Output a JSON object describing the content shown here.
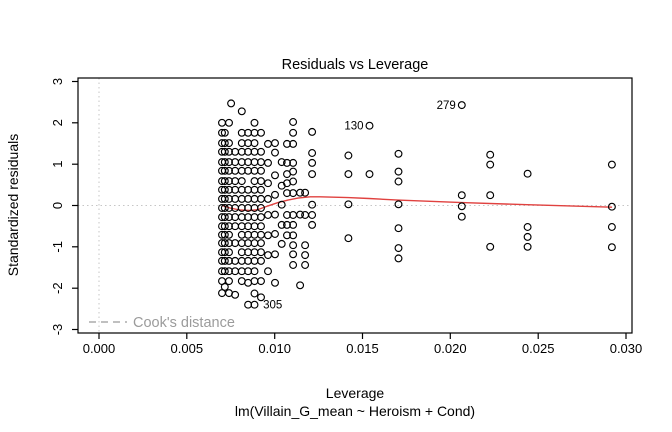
{
  "chart_data": {
    "type": "scatter",
    "title": "Residuals vs Leverage",
    "xlabel": "Leverage",
    "ylabel": "Standardized residuals",
    "model_label": "lm(Villain_G_mean ~ Heroism + Cond)",
    "xlim": [
      -0.0012,
      0.03036
    ],
    "ylim": [
      -3.09,
      3.09
    ],
    "grid": false,
    "x_ticks": {
      "values": [
        0.0,
        0.005,
        0.01,
        0.015,
        0.02,
        0.025,
        0.03
      ],
      "labels": [
        "0.000",
        "0.005",
        "0.010",
        "0.015",
        "0.020",
        "0.025",
        "0.030"
      ]
    },
    "y_ticks": {
      "values": [
        -3,
        -2,
        -1,
        0,
        1,
        2,
        3
      ],
      "labels": [
        "-3",
        "-2",
        "-1",
        "0",
        "1",
        "2",
        "3"
      ]
    },
    "reference_lines": {
      "horizontal_y": 0,
      "vertical_x": 0,
      "color": "#c6c6c6",
      "style": "dotted"
    },
    "legend": {
      "label": "Cook's distance",
      "color": "#9b9b9b",
      "line_style": "dashed",
      "position": "bottom-left"
    },
    "point_style": {
      "stroke": "#000000",
      "fill": "none",
      "radius": 3.4,
      "stroke_width": 1.15
    },
    "smoother": {
      "name": "red smoothing line",
      "color": "#e0413f",
      "points": [
        [
          0.007,
          0.0
        ],
        [
          0.00746,
          -0.06
        ],
        [
          0.00803,
          -0.11
        ],
        [
          0.0086,
          -0.12
        ],
        [
          0.00905,
          -0.1
        ],
        [
          0.00962,
          -0.01
        ],
        [
          0.01019,
          0.07
        ],
        [
          0.01076,
          0.13
        ],
        [
          0.01133,
          0.18
        ],
        [
          0.01201,
          0.21
        ],
        [
          0.01258,
          0.21
        ],
        [
          0.01418,
          0.19
        ],
        [
          0.01537,
          0.17
        ],
        [
          0.01702,
          0.13
        ],
        [
          0.02067,
          0.07
        ],
        [
          0.02437,
          0.02
        ],
        [
          0.02921,
          -0.04
        ]
      ]
    },
    "labeled_points": [
      {
        "label": "130",
        "x": 0.0154,
        "y": 1.93,
        "side": "left"
      },
      {
        "label": "279",
        "x": 0.02065,
        "y": 2.43,
        "side": "left"
      },
      {
        "label": "305",
        "x": 0.009,
        "y": -2.4,
        "side": "right"
      }
    ],
    "columns": [
      {
        "leverage": 0.007,
        "residuals": [
          2.0,
          1.76,
          1.51,
          1.3,
          1.05,
          0.84,
          0.59,
          0.38,
          0.16,
          -0.06,
          -0.28,
          -0.5,
          -0.71,
          -0.91,
          -1.13,
          -1.34,
          -1.59,
          -1.83,
          -2.12
        ]
      },
      {
        "leverage": 0.00716,
        "residuals": [
          1.76,
          1.51,
          1.3,
          1.05,
          0.84,
          0.59,
          0.38,
          0.16,
          -0.06,
          -0.28,
          -0.5,
          -0.71,
          -0.91,
          -1.13,
          -1.34,
          -1.59,
          -1.97
        ]
      },
      {
        "leverage": 0.0074,
        "residuals": [
          2.0,
          1.51,
          1.3,
          1.05,
          0.84,
          0.59,
          0.38,
          0.16,
          -0.06,
          -0.28,
          -0.5,
          -0.71,
          -0.91,
          -1.13,
          -1.34,
          -1.59,
          -1.83,
          -2.12
        ]
      },
      {
        "leverage": 0.00752,
        "residuals": [
          2.47
        ]
      },
      {
        "leverage": 0.00775,
        "residuals": [
          1.3,
          1.05,
          0.84,
          0.59,
          0.38,
          0.16,
          -0.06,
          -0.28,
          -0.5,
          -0.91,
          -1.34,
          -1.59,
          -2.16
        ]
      },
      {
        "leverage": 0.00813,
        "residuals": [
          2.28,
          1.76,
          1.51,
          1.3,
          1.05,
          0.84,
          0.59,
          0.38,
          0.16,
          -0.06,
          -0.28,
          -0.5,
          -0.71,
          -0.91,
          -1.13,
          -1.34,
          -1.59,
          -1.83
        ]
      },
      {
        "leverage": 0.00849,
        "residuals": [
          1.76,
          1.51,
          1.3,
          1.05,
          0.84,
          0.38,
          0.16,
          -0.06,
          -0.28,
          -0.5,
          -0.71,
          -0.91,
          -1.13,
          -1.34,
          -1.59,
          -1.87,
          -2.4
        ]
      },
      {
        "leverage": 0.00885,
        "residuals": [
          2.0,
          1.76,
          1.51,
          1.3,
          1.05,
          0.84,
          0.59,
          0.38,
          0.16,
          -0.06,
          -0.28,
          -0.5,
          -0.71,
          -0.91,
          -1.13,
          -1.34,
          -1.59,
          -1.83,
          -2.13,
          -2.4
        ]
      },
      {
        "leverage": 0.00922,
        "residuals": [
          1.76,
          1.3,
          1.05,
          0.84,
          0.59,
          0.38,
          0.16,
          -0.06,
          -0.28,
          -0.5,
          -0.71,
          -0.91,
          -1.13,
          -1.34,
          -1.83,
          -2.22
        ]
      },
      {
        "leverage": 0.00962,
        "residuals": [
          1.49,
          1.03,
          0.54,
          0.16,
          -0.23,
          -0.72,
          -1.2,
          -1.59
        ]
      },
      {
        "leverage": 0.01002,
        "residuals": [
          1.51,
          1.28,
          0.73,
          0.26,
          -0.22,
          -0.69,
          -1.18,
          -1.87
        ]
      },
      {
        "leverage": 0.0104,
        "residuals": [
          1.05,
          0.48,
          0.02,
          -0.47,
          -0.93
        ]
      },
      {
        "leverage": 0.0107,
        "residuals": [
          1.49,
          1.03,
          0.76,
          0.54,
          0.3,
          -0.23,
          -0.47,
          -0.72
        ]
      },
      {
        "leverage": 0.01105,
        "residuals": [
          2.02,
          1.76,
          1.49,
          1.03,
          0.82,
          0.58,
          0.3,
          -0.23,
          -0.47,
          -0.72,
          -0.96,
          -1.18,
          -1.44
        ]
      },
      {
        "leverage": 0.01145,
        "residuals": [
          0.31,
          -0.22,
          -1.93
        ]
      },
      {
        "leverage": 0.01173,
        "residuals": [
          0.31,
          -0.23,
          -0.96,
          -1.2,
          -1.44
        ]
      },
      {
        "leverage": 0.01213,
        "residuals": [
          1.78,
          1.27,
          1.03,
          0.76,
          0.02,
          -0.23,
          -0.47
        ]
      },
      {
        "leverage": 0.0142,
        "residuals": [
          1.21,
          0.76,
          0.03,
          -0.79
        ]
      },
      {
        "leverage": 0.0154,
        "residuals": [
          1.93,
          0.76
        ]
      },
      {
        "leverage": 0.01705,
        "residuals": [
          1.25,
          0.82,
          0.58,
          0.03,
          -0.55,
          -1.03,
          -1.28
        ]
      },
      {
        "leverage": 0.02065,
        "residuals": [
          2.43,
          0.25,
          -0.02,
          -0.27
        ]
      },
      {
        "leverage": 0.02227,
        "residuals": [
          1.23,
          0.99,
          0.25,
          -1.0
        ]
      },
      {
        "leverage": 0.0244,
        "residuals": [
          0.77,
          -0.52,
          -0.76,
          -1.0
        ]
      },
      {
        "leverage": 0.0292,
        "residuals": [
          0.99,
          -0.03,
          -0.52,
          -1.01
        ]
      }
    ]
  }
}
